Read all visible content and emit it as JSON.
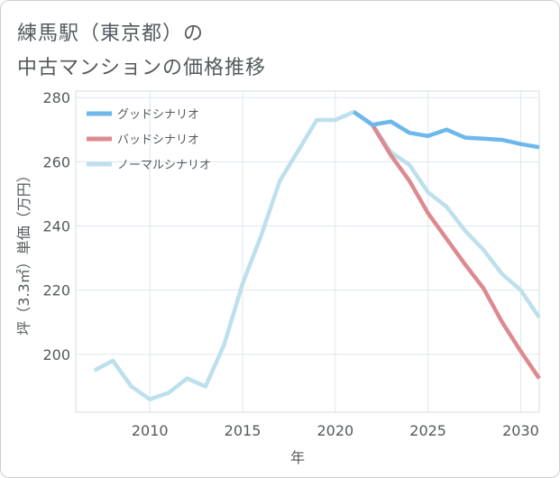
{
  "title_lines": [
    "練馬駅（東京都）の",
    "中古マンションの価格推移"
  ],
  "chart_data": {
    "type": "line",
    "xlabel": "年",
    "ylabel": "坪（3.3㎡）単価（万円）",
    "xlim": [
      2006,
      2031
    ],
    "ylim": [
      182,
      282
    ],
    "x_ticks": [
      2010,
      2015,
      2020,
      2025,
      2030
    ],
    "y_ticks": [
      200,
      220,
      240,
      260,
      280
    ],
    "grid": true,
    "legend_position": "top-left",
    "series": [
      {
        "name": "グッドシナリオ",
        "color": "#6cb8ec",
        "points": [
          [
            2021,
            275.5
          ],
          [
            2022,
            271.5
          ],
          [
            2023,
            272.5
          ],
          [
            2024,
            269
          ],
          [
            2025,
            268
          ],
          [
            2026,
            270
          ],
          [
            2027,
            267.5
          ],
          [
            2028,
            267.2
          ],
          [
            2029,
            266.8
          ],
          [
            2030,
            265.5
          ],
          [
            2031,
            264.5
          ]
        ]
      },
      {
        "name": "バッドシナリオ",
        "color": "#dc8a90",
        "points": [
          [
            2021,
            275.5
          ],
          [
            2022,
            271.5
          ],
          [
            2023,
            262
          ],
          [
            2024,
            254
          ],
          [
            2025,
            244
          ],
          [
            2026,
            236
          ],
          [
            2027,
            228
          ],
          [
            2028,
            220.5
          ],
          [
            2029,
            210
          ],
          [
            2030,
            201
          ],
          [
            2031,
            192.5
          ]
        ]
      },
      {
        "name": "ノーマルシナリオ",
        "color": "#bde0ec",
        "points": [
          [
            2007,
            195
          ],
          [
            2008,
            198
          ],
          [
            2009,
            190
          ],
          [
            2010,
            186
          ],
          [
            2011,
            188
          ],
          [
            2012,
            192.5
          ],
          [
            2013,
            190
          ],
          [
            2014,
            203
          ],
          [
            2015,
            222
          ],
          [
            2016,
            237
          ],
          [
            2017,
            254
          ],
          [
            2018,
            263.5
          ],
          [
            2019,
            273
          ],
          [
            2020,
            273
          ],
          [
            2021,
            275.5
          ],
          [
            2022,
            271.5
          ],
          [
            2023,
            263
          ],
          [
            2024,
            259
          ],
          [
            2025,
            250.5
          ],
          [
            2026,
            246
          ],
          [
            2027,
            238.5
          ],
          [
            2028,
            232.5
          ],
          [
            2029,
            225
          ],
          [
            2030,
            220
          ],
          [
            2031,
            211.5
          ]
        ]
      }
    ]
  }
}
